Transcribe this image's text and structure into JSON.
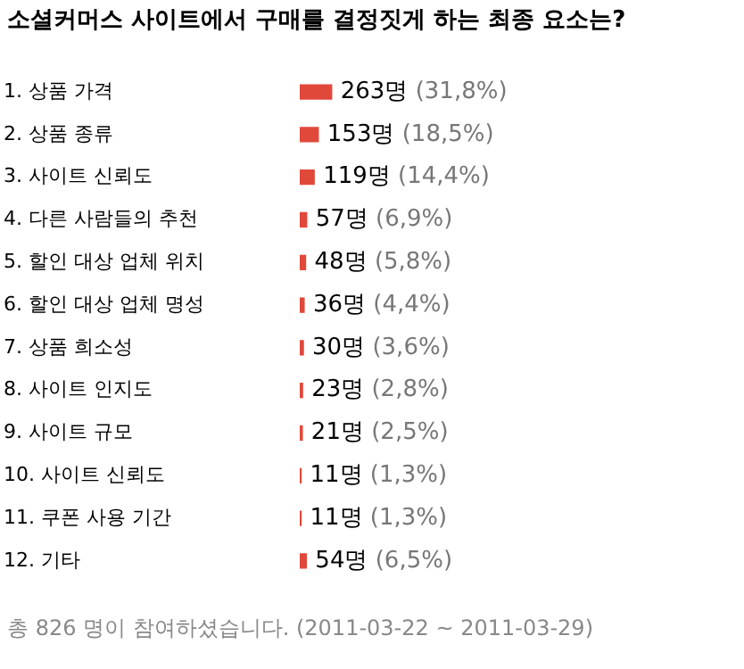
{
  "chart_data": {
    "type": "bar",
    "orientation": "horizontal",
    "title": "소셜커머스 사이트에서 구매를 결정짓게 하는 최종 요소는?",
    "categories": [
      "1. 상품 가격",
      "2. 상품 종류",
      "3. 사이트 신뢰도",
      "4. 다른 사람들의 추천",
      "5. 할인 대상 업체 위치",
      "6. 할인 대상 업체 명성",
      "7. 상품 희소성",
      "8. 사이트 인지도",
      "9. 사이트 규모",
      "10. 사이트 신뢰도",
      "11. 쿠폰 사용 기간",
      "12. 기타"
    ],
    "values": [
      263,
      153,
      119,
      57,
      48,
      36,
      30,
      23,
      21,
      11,
      11,
      54
    ],
    "value_labels": [
      "263명 (31,8%)",
      "153명 (18,5%)",
      "119명 (14,4%)",
      "57명 (6,9%)",
      "48명 (5,8%)",
      "36명 (4,4%)",
      "30명 (3,6%)",
      "23명 (2,8%)",
      "21명 (2,5%)",
      "11명 (1,3%)",
      "11명 (1,3%)",
      "54명 (6,5%)"
    ],
    "color": "#e0483a",
    "tick_labels": "y",
    "legend": false,
    "annotations": [
      "총 826 명이 참여하셨습니다. (2011-03-22 ~ 2011-03-29)"
    ]
  }
}
